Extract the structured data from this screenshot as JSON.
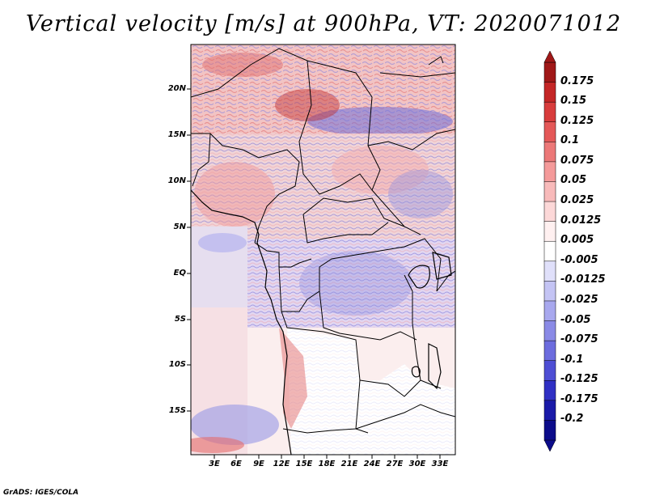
{
  "title": "Vertical velocity [m/s] at 900hPa, VT: 2020071012",
  "footer": "GrADS: IGES/COLA",
  "map": {
    "variable": "Vertical velocity",
    "units": "m/s",
    "level": "900hPa",
    "valid_time": "2020071012",
    "lat_labels": [
      "20N",
      "15N",
      "10N",
      "5N",
      "EQ",
      "5S",
      "10S",
      "15S"
    ],
    "lon_labels": [
      "3E",
      "6E",
      "9E",
      "12E",
      "15E",
      "18E",
      "21E",
      "24E",
      "27E",
      "30E",
      "33E"
    ]
  },
  "colorbar": {
    "levels": [
      "0.175",
      "0.15",
      "0.125",
      "0.1",
      "0.075",
      "0.05",
      "0.025",
      "0.0125",
      "0.005",
      "-0.005",
      "-0.0125",
      "-0.025",
      "-0.05",
      "-0.075",
      "-0.1",
      "-0.125",
      "-0.175",
      "-0.2"
    ],
    "colors": [
      "#a01818",
      "#c42626",
      "#d83c3c",
      "#e45858",
      "#ec7878",
      "#f49a9a",
      "#f8baba",
      "#fcd8d8",
      "#fff0f0",
      "#ffffff",
      "#e0e0fa",
      "#c4c4f4",
      "#a8a8ee",
      "#8a8ae6",
      "#6c6cde",
      "#4e4ed4",
      "#3030c4",
      "#1a1aa8",
      "#0c0c8a"
    ]
  }
}
